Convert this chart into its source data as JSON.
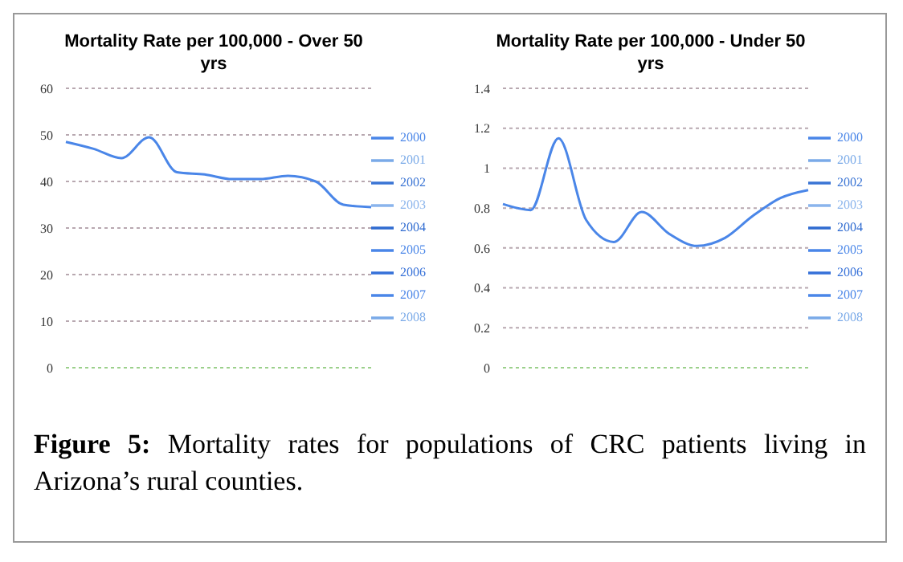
{
  "chart_data": [
    {
      "type": "line",
      "title": "Mortality Rate per 100,000 - Over 50 yrs",
      "categories": [
        null,
        null,
        null,
        null,
        null,
        null,
        null,
        null,
        null,
        null,
        null,
        null
      ],
      "series": [
        {
          "name": "2000",
          "color": "#4a86e8",
          "values": [
            48.5,
            47,
            45,
            49.5,
            42,
            41.5,
            40.5,
            40.5,
            41.2,
            40,
            35,
            34.5
          ]
        },
        {
          "name": "2001",
          "color": "#7aaae8",
          "values": [
            null,
            null,
            null,
            null,
            null,
            null,
            null,
            null,
            null,
            null,
            null,
            null
          ]
        },
        {
          "name": "2002",
          "color": "#3a74d4",
          "values": [
            null,
            null,
            null,
            null,
            null,
            null,
            null,
            null,
            null,
            null,
            null,
            null
          ]
        },
        {
          "name": "2003",
          "color": "#8ab4ec",
          "values": [
            null,
            null,
            null,
            null,
            null,
            null,
            null,
            null,
            null,
            null,
            null,
            null
          ]
        },
        {
          "name": "2004",
          "color": "#2f6bd0",
          "values": [
            null,
            null,
            null,
            null,
            null,
            null,
            null,
            null,
            null,
            null,
            null,
            null
          ]
        },
        {
          "name": "2005",
          "color": "#4a86e8",
          "values": [
            null,
            null,
            null,
            null,
            null,
            null,
            null,
            null,
            null,
            null,
            null,
            null
          ]
        },
        {
          "name": "2006",
          "color": "#3570d8",
          "values": [
            null,
            null,
            null,
            null,
            null,
            null,
            null,
            null,
            null,
            null,
            null,
            null
          ]
        },
        {
          "name": "2007",
          "color": "#4a86e8",
          "values": [
            null,
            null,
            null,
            null,
            null,
            null,
            null,
            null,
            null,
            null,
            null,
            null
          ]
        },
        {
          "name": "2008",
          "color": "#7aaae8",
          "values": [
            null,
            null,
            null,
            null,
            null,
            null,
            null,
            null,
            null,
            null,
            null,
            null
          ]
        }
      ],
      "ylim": [
        0,
        60
      ],
      "yticks": [
        0,
        10,
        20,
        30,
        40,
        50,
        60
      ],
      "grid": "y",
      "legend": "right",
      "tick_labels": "y",
      "marker": "none",
      "annotations": [
        "Figure 5: Mortality rates for populations of CRC patients living in Arizona’s rural counties."
      ]
    },
    {
      "type": "line",
      "title": "Mortality Rate per 100,000 - Under 50 yrs",
      "categories": [
        null,
        null,
        null,
        null,
        null,
        null,
        null,
        null,
        null,
        null,
        null,
        null
      ],
      "series": [
        {
          "name": "2000",
          "color": "#4a86e8",
          "values": [
            0.82,
            0.79,
            1.15,
            0.74,
            0.63,
            0.78,
            0.67,
            0.61,
            0.65,
            0.76,
            0.85,
            0.89
          ]
        },
        {
          "name": "2001",
          "color": "#7aaae8",
          "values": [
            null,
            null,
            null,
            null,
            null,
            null,
            null,
            null,
            null,
            null,
            null,
            null
          ]
        },
        {
          "name": "2002",
          "color": "#3a74d4",
          "values": [
            null,
            null,
            null,
            null,
            null,
            null,
            null,
            null,
            null,
            null,
            null,
            null
          ]
        },
        {
          "name": "2003",
          "color": "#8ab4ec",
          "values": [
            null,
            null,
            null,
            null,
            null,
            null,
            null,
            null,
            null,
            null,
            null,
            null
          ]
        },
        {
          "name": "2004",
          "color": "#2f6bd0",
          "values": [
            null,
            null,
            null,
            null,
            null,
            null,
            null,
            null,
            null,
            null,
            null,
            null
          ]
        },
        {
          "name": "2005",
          "color": "#4a86e8",
          "values": [
            null,
            null,
            null,
            null,
            null,
            null,
            null,
            null,
            null,
            null,
            null,
            null
          ]
        },
        {
          "name": "2006",
          "color": "#3570d8",
          "values": [
            null,
            null,
            null,
            null,
            null,
            null,
            null,
            null,
            null,
            null,
            null,
            null
          ]
        },
        {
          "name": "2007",
          "color": "#4a86e8",
          "values": [
            null,
            null,
            null,
            null,
            null,
            null,
            null,
            null,
            null,
            null,
            null,
            null
          ]
        },
        {
          "name": "2008",
          "color": "#7aaae8",
          "values": [
            null,
            null,
            null,
            null,
            null,
            null,
            null,
            null,
            null,
            null,
            null,
            null
          ]
        }
      ],
      "ylim": [
        0,
        1.4
      ],
      "yticks": [
        0,
        0.2,
        0.4,
        0.6,
        0.8,
        1,
        1.2,
        1.4
      ],
      "grid": "y",
      "legend": "right",
      "tick_labels": "y",
      "marker": "none"
    }
  ]
}
